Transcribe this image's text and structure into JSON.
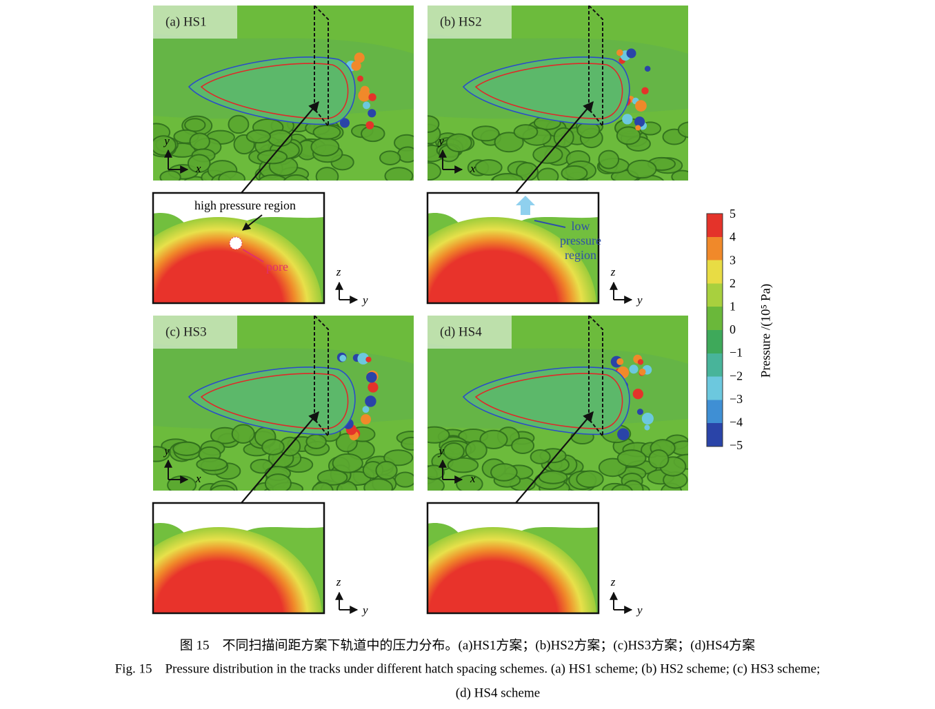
{
  "panels": [
    {
      "label": "(a) HS1",
      "axis_labels": [
        "y",
        "x"
      ],
      "inset_axis_labels": [
        "z",
        "y"
      ]
    },
    {
      "label": "(b) HS2",
      "axis_labels": [
        "y",
        "x"
      ],
      "inset_axis_labels": [
        "z",
        "y"
      ]
    },
    {
      "label": "(c) HS3",
      "axis_labels": [
        "y",
        "x"
      ],
      "inset_axis_labels": [
        "z",
        "y"
      ]
    },
    {
      "label": "(d) HS4",
      "axis_labels": [
        "y",
        "x"
      ],
      "inset_axis_labels": [
        "z",
        "y"
      ]
    }
  ],
  "annotations": {
    "high_pressure": "high pressure region",
    "pore": "pore",
    "low_pressure": [
      "low",
      "pressure",
      "region"
    ]
  },
  "colorbar": {
    "label": "Pressure /(10⁵ Pa)",
    "ticks": [
      "5",
      "4",
      "3",
      "2",
      "1",
      "0",
      "−1",
      "−2",
      "−3",
      "−4",
      "−5"
    ]
  },
  "caption": {
    "zh": "图 15　不同扫描间距方案下轨道中的压力分布。(a)HS1方案；(b)HS2方案；(c)HS3方案；(d)HS4方案",
    "en": [
      "Fig. 15　Pressure distribution in the tracks under different hatch spacing schemes. (a) HS1 scheme; (b) HS2 scheme; (c) HS3 scheme;",
      "(d) HS4 scheme"
    ]
  }
}
